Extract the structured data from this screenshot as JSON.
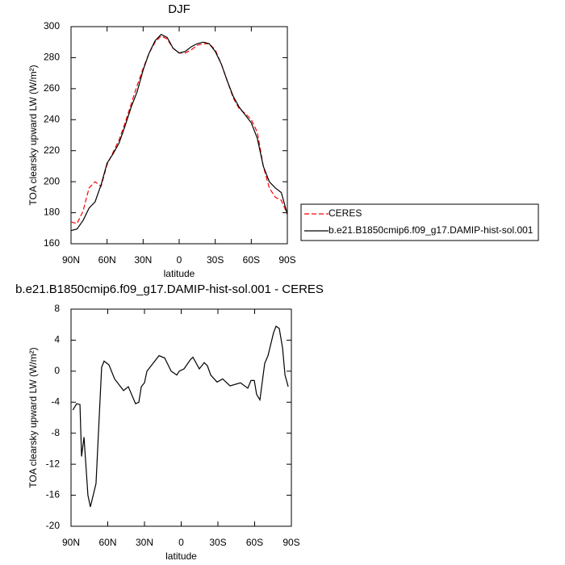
{
  "chart_data": [
    {
      "type": "line",
      "title": "DJF",
      "xlabel": "latitude",
      "ylabel": "TOA clearsky upward LW (W/m²)",
      "xlim": [
        90,
        -90
      ],
      "ylim": [
        160,
        300
      ],
      "xticks": [
        {
          "value": 90,
          "label": "90N"
        },
        {
          "value": 60,
          "label": "60N"
        },
        {
          "value": 30,
          "label": "30N"
        },
        0,
        {
          "value": -30,
          "label": "30S"
        },
        {
          "value": -60,
          "label": "60S"
        },
        {
          "value": -90,
          "label": "90S"
        }
      ],
      "yticks": [
        160,
        180,
        200,
        220,
        240,
        260,
        280,
        300
      ],
      "x": [
        90,
        85,
        80,
        75,
        70,
        65,
        60,
        55,
        50,
        45,
        40,
        35,
        30,
        25,
        20,
        15,
        10,
        5,
        0,
        -5,
        -10,
        -15,
        -20,
        -25,
        -30,
        -35,
        -40,
        -45,
        -50,
        -55,
        -60,
        -65,
        -70,
        -75,
        -80,
        -85,
        -90
      ],
      "series": [
        {
          "name": "CERES",
          "color": "#ff0000",
          "dashed": true,
          "values": [
            174,
            173,
            181,
            196,
            200,
            197,
            211,
            219,
            227,
            238,
            250,
            262,
            273,
            283,
            290,
            294,
            292,
            286,
            283,
            283,
            285,
            288,
            289,
            289,
            285,
            276,
            265,
            254,
            247,
            244,
            240,
            232,
            210,
            196,
            190,
            188,
            179
          ]
        },
        {
          "name": "b.e21.B1850cmip6.f09_g17.DAMIP-hist-sol.001",
          "color": "#000000",
          "dashed": false,
          "values": [
            168.5,
            169.5,
            175,
            183,
            187,
            198,
            212,
            218,
            225,
            236,
            248,
            258,
            272,
            283,
            291,
            295,
            293,
            286,
            283,
            284,
            287,
            289,
            290,
            289,
            284,
            276,
            265,
            255,
            248,
            243,
            238,
            228,
            210,
            200,
            196,
            193,
            179
          ]
        }
      ]
    },
    {
      "type": "line",
      "title": "b.e21.B1850cmip6.f09_g17.DAMIP-hist-sol.001 - CERES",
      "xlabel": "latitude",
      "ylabel": "TOA clearsky upward LW (W/m²)",
      "xlim": [
        90,
        -90
      ],
      "ylim": [
        -20,
        8
      ],
      "xticks": [
        {
          "value": 90,
          "label": "90N"
        },
        {
          "value": 60,
          "label": "60N"
        },
        {
          "value": 30,
          "label": "30N"
        },
        0,
        {
          "value": -30,
          "label": "30S"
        },
        {
          "value": -60,
          "label": "60S"
        },
        {
          "value": -90,
          "label": "90S"
        }
      ],
      "yticks": [
        -20,
        -16,
        -12,
        -8,
        -4,
        0,
        4,
        8
      ],
      "x": [
        88.5,
        85.4,
        82.7,
        81.4,
        79.4,
        76.2,
        74.2,
        69.6,
        65,
        63,
        59,
        54.4,
        47.1,
        43.2,
        37.3,
        34.6,
        32.6,
        30,
        28,
        18.1,
        13.5,
        8.2,
        3.6,
        1.6,
        -2.3,
        -7.6,
        -9.6,
        -14.8,
        -18.8,
        -21.4,
        -24.1,
        -29.3,
        -33.9,
        -39.9,
        -48.4,
        -54.4,
        -57,
        -59.7,
        -61.6,
        -64.3,
        -68.2,
        -70.9,
        -75.5,
        -77.5,
        -80.1,
        -82.8,
        -84.8,
        -87.4
      ],
      "series": [
        {
          "name": null,
          "color": "#000000",
          "dashed": false,
          "values": [
            -5,
            -4.2,
            -4.3,
            -11,
            -8.5,
            -16,
            -17.5,
            -14.5,
            0.5,
            1.3,
            0.8,
            -1,
            -2.5,
            -2,
            -4.2,
            -4,
            -2,
            -1.5,
            0,
            2,
            1.7,
            0,
            -0.5,
            0,
            0.3,
            1.5,
            1.8,
            0.3,
            1.1,
            0.7,
            -0.5,
            -1.4,
            -1,
            -1.9,
            -1.5,
            -2.2,
            -1.2,
            -1.2,
            -3,
            -3.7,
            1,
            2,
            5,
            5.8,
            5.5,
            3,
            -0.5,
            -2
          ]
        }
      ]
    }
  ]
}
